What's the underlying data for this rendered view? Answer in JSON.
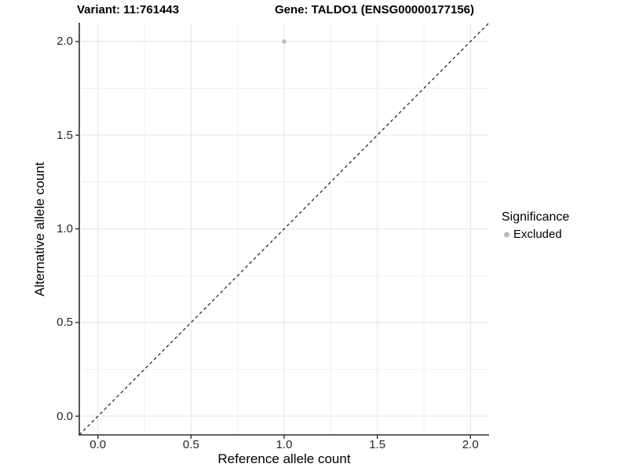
{
  "chart_data": {
    "type": "scatter",
    "titles": {
      "left": "Variant: 11:761443",
      "right": "Gene: TALDO1 (ENSG00000177156)"
    },
    "xlabel": "Reference allele count",
    "ylabel": "Alternative allele count",
    "xlim": [
      -0.1,
      2.1
    ],
    "ylim": [
      -0.1,
      2.1
    ],
    "x_ticks": [
      0.0,
      0.5,
      1.0,
      1.5,
      2.0
    ],
    "y_ticks": [
      0.0,
      0.5,
      1.0,
      1.5,
      2.0
    ],
    "x_minor_ticks": [
      0.25,
      0.75,
      1.25,
      1.75
    ],
    "y_minor_ticks": [
      0.25,
      0.75,
      1.25,
      1.75
    ],
    "grid": "major+minor",
    "series": [
      {
        "name": "Excluded",
        "color": "#bdbdbd",
        "points": [
          {
            "x": 1.0,
            "y": 2.0
          }
        ]
      }
    ],
    "reference_line": {
      "kind": "y=x",
      "style": "dashed",
      "color": "#1a1a1a"
    },
    "legend": {
      "title": "Significance",
      "position": "right",
      "entries": [
        {
          "label": "Excluded",
          "color": "#bdbdbd"
        }
      ]
    },
    "colors": {
      "background": "#ffffff",
      "grid_major": "#e4e4e4",
      "grid_minor": "#f1f1f1",
      "axis_line": "#2f2f2f",
      "tick_mark": "#2f2f2f",
      "text": "#000000",
      "point": "#bdbdbd"
    }
  }
}
